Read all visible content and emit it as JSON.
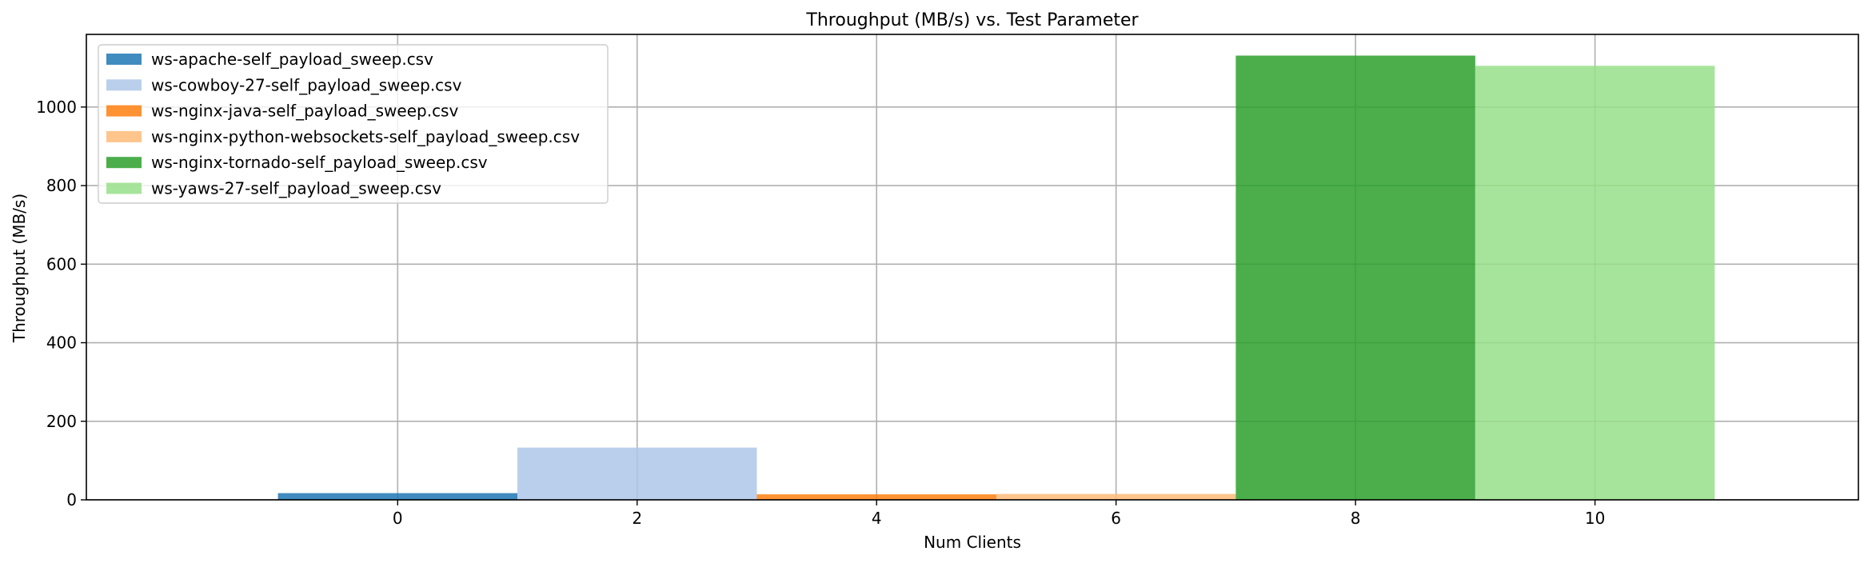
{
  "chart_data": {
    "type": "bar",
    "title": "Throughput (MB/s) vs. Test Parameter",
    "xlabel": "Num Clients",
    "ylabel": "Throughput (MB/s)",
    "xlim": [
      -2.6,
      12.2
    ],
    "ylim": [
      0,
      1185
    ],
    "x_ticks": [
      0,
      2,
      4,
      6,
      8,
      10
    ],
    "y_ticks": [
      0,
      200,
      400,
      600,
      800,
      1000
    ],
    "grid": true,
    "legend_position": "top-left",
    "bar_width": 2,
    "series": [
      {
        "name": "ws-apache-self_payload_sweep.csv",
        "x": 0,
        "value": 17,
        "color": "#1f77b4"
      },
      {
        "name": "ws-cowboy-27-self_payload_sweep.csv",
        "x": 2,
        "value": 133,
        "color": "#aec7e8"
      },
      {
        "name": "ws-nginx-java-self_payload_sweep.csv",
        "x": 4,
        "value": 14,
        "color": "#ff7f0e"
      },
      {
        "name": "ws-nginx-python-websockets-self_payload_sweep.csv",
        "x": 6,
        "value": 15,
        "color": "#ffbb78"
      },
      {
        "name": "ws-nginx-tornado-self_payload_sweep.csv",
        "x": 8,
        "value": 1131,
        "color": "#2ca02c"
      },
      {
        "name": "ws-yaws-27-self_payload_sweep.csv",
        "x": 10,
        "value": 1105,
        "color": "#98df8a"
      }
    ]
  }
}
